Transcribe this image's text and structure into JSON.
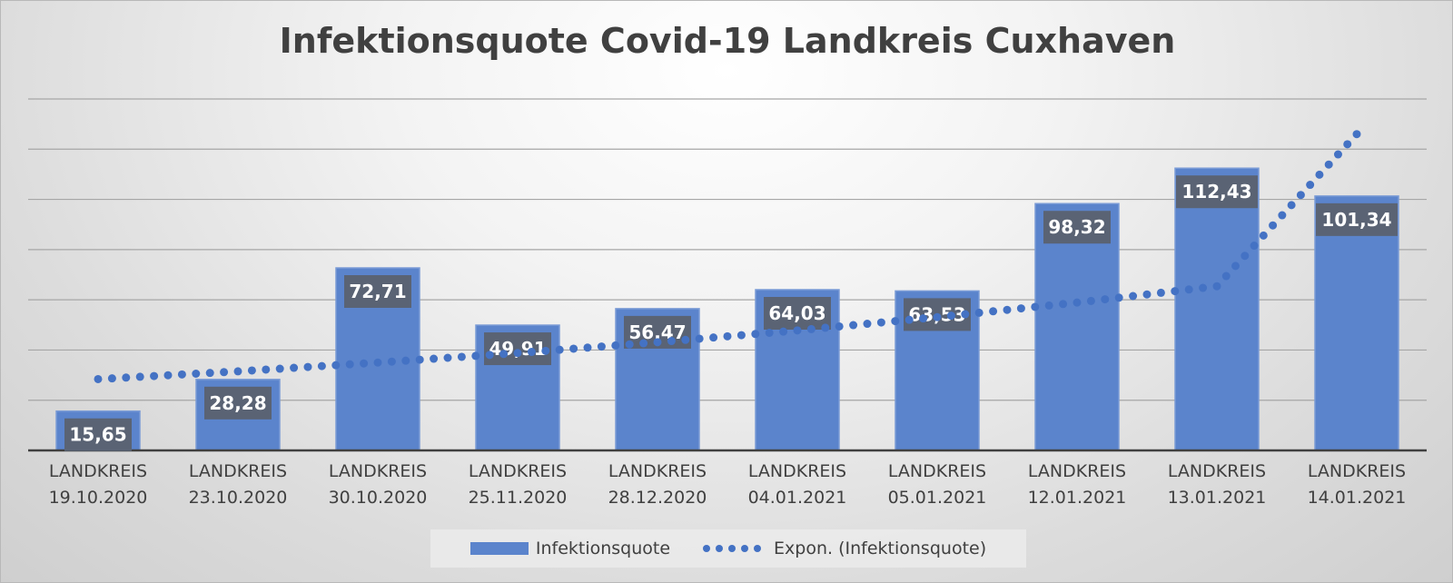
{
  "chart_data": {
    "type": "bar",
    "title": "Infektionsquote Covid-19 Landkreis Cuxhaven",
    "categories": [
      [
        "LANDKREIS",
        "19.10.2020"
      ],
      [
        "LANDKREIS",
        "23.10.2020"
      ],
      [
        "LANDKREIS",
        "30.10.2020"
      ],
      [
        "LANDKREIS",
        "25.11.2020"
      ],
      [
        "LANDKREIS",
        "28.12.2020"
      ],
      [
        "LANDKREIS",
        "04.01.2021"
      ],
      [
        "LANDKREIS",
        "05.01.2021"
      ],
      [
        "LANDKREIS",
        "12.01.2021"
      ],
      [
        "LANDKREIS",
        "13.01.2021"
      ],
      [
        "LANDKREIS",
        "14.01.2021"
      ]
    ],
    "series": [
      {
        "name": "Infektionsquote",
        "values": [
          15.65,
          28.28,
          72.71,
          49.91,
          56.47,
          64.03,
          63.53,
          98.32,
          112.43,
          101.34
        ],
        "data_labels": [
          "15,65",
          "28,28",
          "72,71",
          "49,91",
          "56,47",
          "64,03",
          "63,53",
          "98,32",
          "112,43",
          "101,34"
        ]
      }
    ],
    "trendline": {
      "name": "Expon. (Infektionsquote)",
      "type": "exponential",
      "values": [
        28.4,
        31.5,
        35.0,
        38.8,
        43.1,
        47.8,
        53.1,
        58.9,
        65.4,
        126.0
      ]
    },
    "ylim": [
      0,
      140
    ],
    "y_axis_labels_visible": false,
    "grid": true,
    "legend_position": "bottom",
    "colors": {
      "bar": "#5b84cc",
      "bar_border": "#4f78c0",
      "trend": "#4472c4",
      "data_label_bg": "#5a6374",
      "data_label_text": "#ffffff",
      "gridline": "#a6a6a6",
      "axis": "#404040",
      "title": "#404040"
    }
  },
  "legend": {
    "bar_label": "Infektionsquote",
    "trend_label": "Expon. (Infektionsquote)"
  }
}
